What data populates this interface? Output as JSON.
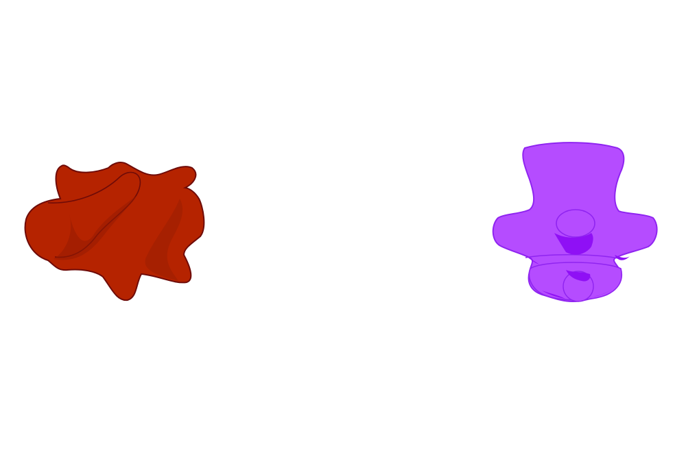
{
  "scene": {
    "background": "#ffffff",
    "objects": [
      {
        "name": "red-blob-shape",
        "fill": "#b52300",
        "stroke": "#6e0b08",
        "shade": "#951c02"
      },
      {
        "name": "purple-chair-shape",
        "fill": "#b54cff",
        "stroke": "#8f24f0",
        "shade": "#8f10f5"
      }
    ]
  }
}
